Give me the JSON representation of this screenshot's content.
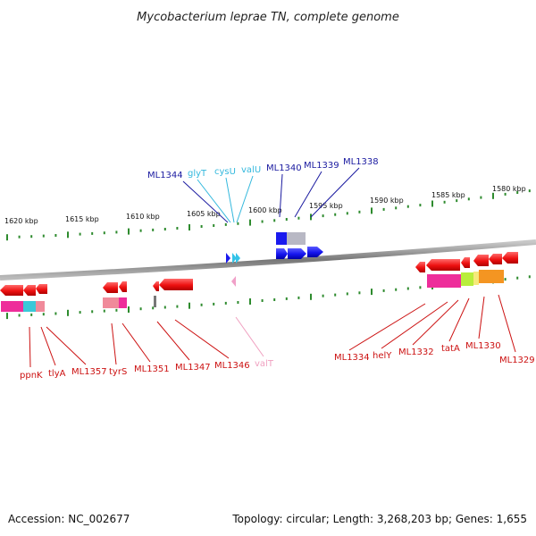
{
  "title": "Mycobacterium leprae TN, complete genome",
  "footer": {
    "accession": "Accession: NC_002677",
    "summary": "Topology: circular; Length: 3,268,203 bp; Genes: 1,655"
  },
  "colors": {
    "backbone": "#8c8c8c",
    "ticks": "#2e8b2e",
    "red_gene": "#ee1111",
    "blue_gene": "#1a1aee",
    "cyan_gene": "#33c3e8",
    "pink_gene": "#f0a0c8",
    "label_red": "#cc1111",
    "label_blue": "#1a1aa0",
    "label_cyan": "#33b8dd",
    "label_pink": "#f0a0c0"
  },
  "kbp_labels": [
    "1620 kbp",
    "1615 kbp",
    "1610 kbp",
    "1605 kbp",
    "1600 kbp",
    "1595 kbp",
    "1590 kbp",
    "1585 kbp",
    "1580 kbp"
  ],
  "top_labels": [
    {
      "text": "ML1344",
      "color": "blue"
    },
    {
      "text": "glyT",
      "color": "cyan"
    },
    {
      "text": "cysU",
      "color": "cyan"
    },
    {
      "text": "valU",
      "color": "cyan"
    },
    {
      "text": "ML1340",
      "color": "blue"
    },
    {
      "text": "ML1339",
      "color": "blue"
    },
    {
      "text": "ML1338",
      "color": "blue"
    }
  ],
  "bottom_labels": [
    {
      "text": "ppnK",
      "color": "red"
    },
    {
      "text": "tlyA",
      "color": "red"
    },
    {
      "text": "ML1357",
      "color": "red"
    },
    {
      "text": "tyrS",
      "color": "red"
    },
    {
      "text": "ML1351",
      "color": "red"
    },
    {
      "text": "ML1347",
      "color": "red"
    },
    {
      "text": "ML1346",
      "color": "red"
    },
    {
      "text": "valT",
      "color": "pink"
    },
    {
      "text": "ML1334",
      "color": "red"
    },
    {
      "text": "helY",
      "color": "red"
    },
    {
      "text": "ML1332",
      "color": "red"
    },
    {
      "text": "tatA",
      "color": "red"
    },
    {
      "text": "ML1330",
      "color": "red"
    },
    {
      "text": "ML1329",
      "color": "red"
    }
  ]
}
